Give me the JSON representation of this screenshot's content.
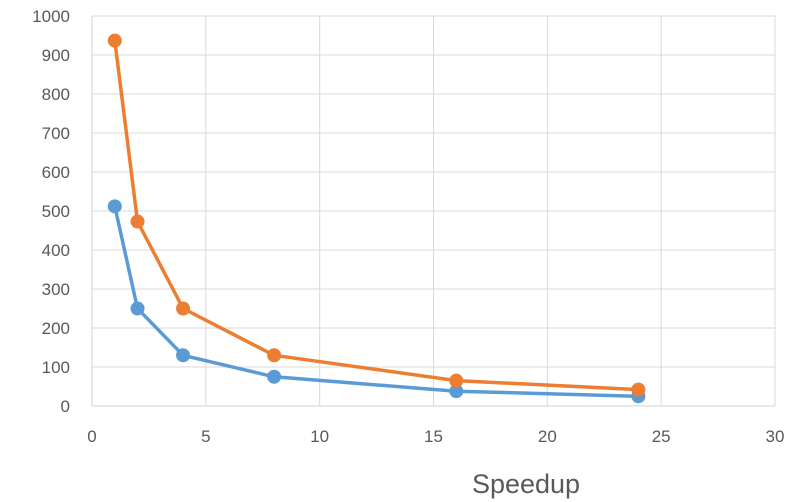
{
  "chart_data": {
    "type": "scatter",
    "title": "",
    "xlabel": "Speedup",
    "ylabel": "",
    "xlim": [
      0,
      30
    ],
    "ylim": [
      0,
      1000
    ],
    "xticks": [
      0,
      5,
      10,
      15,
      20,
      25,
      30
    ],
    "yticks": [
      0,
      100,
      200,
      300,
      400,
      500,
      600,
      700,
      800,
      900,
      1000
    ],
    "grid": true,
    "legend": "none",
    "series": [
      {
        "color": "#5b9bd5",
        "x": [
          1,
          2,
          4,
          8,
          16,
          24
        ],
        "y": [
          512,
          250,
          130,
          75,
          38,
          25
        ]
      },
      {
        "color": "#ed7d31",
        "x": [
          1,
          2,
          4,
          8,
          16,
          24
        ],
        "y": [
          937,
          473,
          250,
          130,
          65,
          42
        ]
      }
    ]
  }
}
